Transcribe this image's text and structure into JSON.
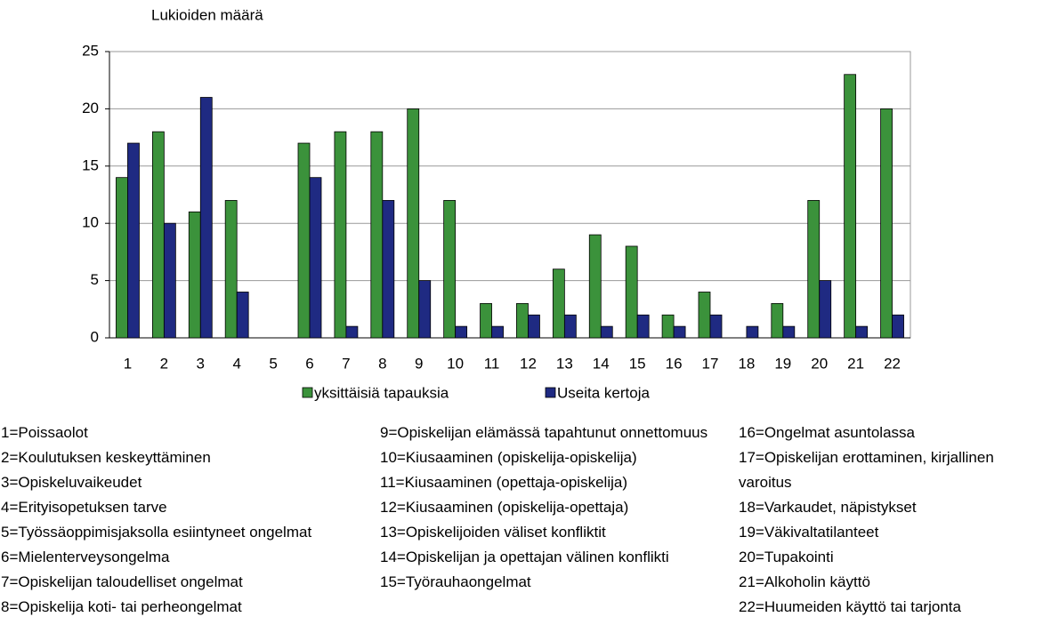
{
  "chart_data": {
    "type": "bar",
    "y_label": "Lukioiden määrä",
    "categories": [
      "1",
      "2",
      "3",
      "4",
      "5",
      "6",
      "7",
      "8",
      "9",
      "10",
      "11",
      "12",
      "13",
      "14",
      "15",
      "16",
      "17",
      "18",
      "19",
      "20",
      "21",
      "22"
    ],
    "series": [
      {
        "name": "yksittäisiä tapauksia",
        "color": "#3b923b",
        "values": [
          14,
          18,
          11,
          12,
          0,
          17,
          18,
          18,
          20,
          12,
          3,
          3,
          6,
          9,
          8,
          2,
          4,
          0,
          3,
          12,
          23,
          20
        ]
      },
      {
        "name": "Useita kertoja",
        "color": "#1f2a82",
        "values": [
          17,
          10,
          21,
          4,
          0,
          14,
          1,
          12,
          5,
          1,
          1,
          2,
          2,
          1,
          2,
          1,
          2,
          1,
          1,
          5,
          1,
          2
        ]
      }
    ],
    "ylim": [
      0,
      25
    ],
    "yticks": [
      0,
      5,
      10,
      15,
      20,
      25
    ],
    "grid": true,
    "legend": "bottom",
    "notes": [
      [
        "1=Poissaolot",
        "2=Koulutuksen keskeyttäminen",
        "3=Opiskeluvaikeudet",
        "4=Erityisopetuksen tarve",
        "5=Työssäoppimisjaksolla esiintyneet ongelmat",
        "6=Mielenterveysongelma",
        "7=Opiskelijan taloudelliset ongelmat",
        "8=Opiskelija koti- tai perheongelmat"
      ],
      [
        "9=Opiskelijan elämässä tapahtunut onnettomuus",
        "10=Kiusaaminen (opiskelija-opiskelija)",
        "11=Kiusaaminen (opettaja-opiskelija)",
        "12=Kiusaaminen (opiskelija-opettaja)",
        "13=Opiskelijoiden väliset konfliktit",
        "14=Opiskelijan ja opettajan välinen konflikti",
        "15=Työrauhaongelmat"
      ],
      [
        "16=Ongelmat asuntolassa",
        "17=Opiskelijan erottaminen, kirjallinen varoitus",
        "18=Varkaudet, näpistykset",
        "19=Väkivaltatilanteet",
        "20=Tupakointi",
        "21=Alkoholin käyttö",
        "22=Huumeiden käyttö tai tarjonta"
      ]
    ]
  }
}
